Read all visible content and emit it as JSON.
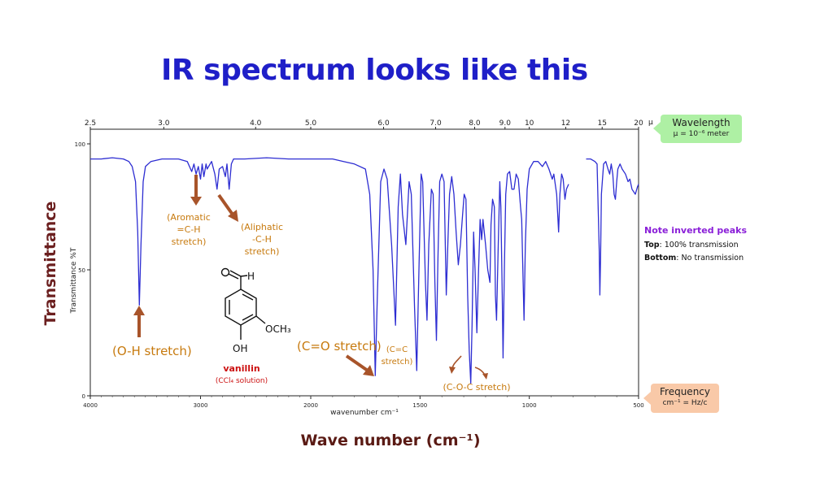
{
  "slide": {
    "title": "IR spectrum looks like this",
    "y_title": "Transmittance",
    "x_title": "Wave number (cm⁻¹)"
  },
  "wavelength_callout": {
    "line1": "Wavelength",
    "line2": "μ = 10⁻⁶ meter"
  },
  "frequency_callout": {
    "line1": "Frequency",
    "line2": "cm⁻¹ = Hz/c"
  },
  "note": {
    "title": "Note inverted peaks",
    "top_label": "Top",
    "top_text": ": 100% transmission",
    "bottom_label": "Bottom",
    "bottom_text": ": No transmission"
  },
  "compound": {
    "name": "vanillin",
    "solution": "(CCl₄ solution)",
    "group_aldehyde": "H",
    "group_methoxy": "OCH₃",
    "group_hydroxyl": "OH"
  },
  "annotations": {
    "aromatic": [
      "(Aromatic",
      "=C-H",
      "stretch)"
    ],
    "aliphatic": [
      "(Aliphatic",
      "-C-H",
      "stretch)"
    ],
    "oh": "(O-H stretch)",
    "co": "(C=O stretch)",
    "cc": [
      "(C=C",
      "stretch)"
    ],
    "coc": "(C-O-C stretch)"
  },
  "colors": {
    "spectrum": "#2d2dd2",
    "annotation": "#c77a0e",
    "arrow": "#a8542a",
    "title": "#1f1fc8",
    "compound_name": "#cc1111"
  },
  "chart_data": {
    "type": "line",
    "title": "",
    "xlabel": "wavenumber cm⁻¹",
    "ylabel": "Transmittance %T",
    "xlim": [
      4000,
      500
    ],
    "ylim": [
      0,
      100
    ],
    "x_reversed": true,
    "xticks": [
      4000,
      3000,
      2000,
      1500,
      1000,
      500
    ],
    "yticks": [
      0,
      50,
      100
    ],
    "top_axis": {
      "label": "μ",
      "ticks": [
        "2.5",
        "3.0",
        "4.0",
        "5.0",
        "6.0",
        "7.0",
        "8.0",
        "9.0",
        "10",
        "12",
        "15",
        "20"
      ]
    },
    "series": [
      {
        "name": "",
        "segments": [
          [
            [
              4000,
              94
            ],
            [
              3900,
              94
            ],
            [
              3800,
              94.5
            ],
            [
              3700,
              94
            ],
            [
              3650,
              93
            ],
            [
              3620,
              91
            ],
            [
              3590,
              85
            ],
            [
              3570,
              65
            ],
            [
              3555,
              36
            ],
            [
              3540,
              60
            ],
            [
              3520,
              85
            ],
            [
              3500,
              91
            ],
            [
              3450,
              93
            ],
            [
              3350,
              94
            ],
            [
              3200,
              94
            ],
            [
              3120,
              93
            ],
            [
              3080,
              89
            ],
            [
              3060,
              92
            ],
            [
              3040,
              88
            ],
            [
              3020,
              91
            ],
            [
              3000,
              86
            ],
            [
              2985,
              92
            ],
            [
              2970,
              87
            ],
            [
              2950,
              92
            ],
            [
              2940,
              90
            ],
            [
              2900,
              93
            ],
            [
              2870,
              88
            ],
            [
              2850,
              82
            ],
            [
              2830,
              90
            ],
            [
              2800,
              91
            ],
            [
              2775,
              87
            ],
            [
              2760,
              92
            ],
            [
              2740,
              82
            ],
            [
              2720,
              92
            ],
            [
              2700,
              94
            ],
            [
              2600,
              94
            ],
            [
              2400,
              94.5
            ],
            [
              2200,
              94
            ],
            [
              2000,
              94
            ],
            [
              1900,
              94
            ],
            [
              1850,
              93
            ],
            [
              1800,
              92
            ],
            [
              1750,
              90
            ],
            [
              1730,
              80
            ],
            [
              1715,
              50
            ],
            [
              1705,
              8
            ],
            [
              1695,
              40
            ],
            [
              1680,
              85
            ],
            [
              1665,
              90
            ],
            [
              1650,
              86
            ],
            [
              1630,
              60
            ],
            [
              1612,
              28
            ],
            [
              1600,
              75
            ],
            [
              1590,
              88
            ],
            [
              1580,
              72
            ],
            [
              1565,
              60
            ],
            [
              1550,
              85
            ],
            [
              1540,
              80
            ],
            [
              1525,
              35
            ],
            [
              1515,
              10
            ],
            [
              1505,
              50
            ],
            [
              1495,
              88
            ],
            [
              1488,
              85
            ],
            [
              1475,
              45
            ],
            [
              1468,
              30
            ],
            [
              1460,
              60
            ],
            [
              1448,
              82
            ],
            [
              1440,
              80
            ],
            [
              1432,
              45
            ],
            [
              1425,
              22
            ],
            [
              1418,
              55
            ],
            [
              1410,
              85
            ],
            [
              1400,
              88
            ],
            [
              1390,
              85
            ],
            [
              1380,
              40
            ],
            [
              1372,
              62
            ],
            [
              1365,
              80
            ],
            [
              1355,
              87
            ],
            [
              1345,
              80
            ],
            [
              1335,
              65
            ],
            [
              1325,
              52
            ],
            [
              1315,
              60
            ],
            [
              1305,
              72
            ],
            [
              1298,
              80
            ],
            [
              1290,
              78
            ],
            [
              1282,
              40
            ],
            [
              1275,
              18
            ],
            [
              1268,
              5
            ],
            [
              1262,
              28
            ],
            [
              1255,
              65
            ],
            [
              1248,
              50
            ],
            [
              1240,
              25
            ],
            [
              1232,
              50
            ],
            [
              1225,
              70
            ],
            [
              1218,
              62
            ],
            [
              1212,
              70
            ],
            [
              1200,
              60
            ],
            [
              1190,
              50
            ],
            [
              1180,
              45
            ],
            [
              1175,
              68
            ],
            [
              1168,
              78
            ],
            [
              1160,
              75
            ],
            [
              1155,
              40
            ],
            [
              1150,
              30
            ],
            [
              1142,
              60
            ],
            [
              1135,
              85
            ],
            [
              1130,
              75
            ],
            [
              1124,
              40
            ],
            [
              1120,
              15
            ],
            [
              1114,
              50
            ],
            [
              1108,
              80
            ],
            [
              1100,
              88
            ],
            [
              1090,
              89
            ],
            [
              1080,
              82
            ],
            [
              1070,
              82
            ],
            [
              1060,
              88
            ],
            [
              1050,
              86
            ],
            [
              1040,
              75
            ],
            [
              1035,
              70
            ],
            [
              1028,
              45
            ],
            [
              1024,
              30
            ],
            [
              1018,
              60
            ],
            [
              1010,
              82
            ],
            [
              1000,
              90
            ],
            [
              980,
              93
            ],
            [
              960,
              93
            ],
            [
              940,
              91
            ],
            [
              925,
              93
            ],
            [
              910,
              90
            ],
            [
              895,
              86
            ],
            [
              888,
              88
            ],
            [
              875,
              80
            ],
            [
              866,
              65
            ],
            [
              860,
              80
            ],
            [
              852,
              88
            ],
            [
              845,
              86
            ],
            [
              837,
              78
            ],
            [
              830,
              82
            ],
            [
              820,
              84
            ]
          ],
          [
            [
              740,
              94
            ],
            [
              720,
              94
            ],
            [
              700,
              93
            ],
            [
              690,
              92
            ],
            [
              685,
              75
            ],
            [
              680,
              58
            ],
            [
              677,
              40
            ],
            [
              674,
              55
            ],
            [
              670,
              80
            ],
            [
              660,
              92
            ],
            [
              650,
              93
            ],
            [
              640,
              90
            ],
            [
              632,
              88
            ],
            [
              625,
              92
            ],
            [
              618,
              88
            ],
            [
              612,
              80
            ],
            [
              606,
              78
            ],
            [
              600,
              85
            ],
            [
              595,
              90
            ],
            [
              585,
              92
            ],
            [
              575,
              90
            ],
            [
              560,
              88
            ],
            [
              548,
              85
            ],
            [
              540,
              86
            ],
            [
              530,
              82
            ],
            [
              515,
              80
            ],
            [
              505,
              83
            ],
            [
              500,
              84
            ]
          ]
        ]
      }
    ]
  }
}
